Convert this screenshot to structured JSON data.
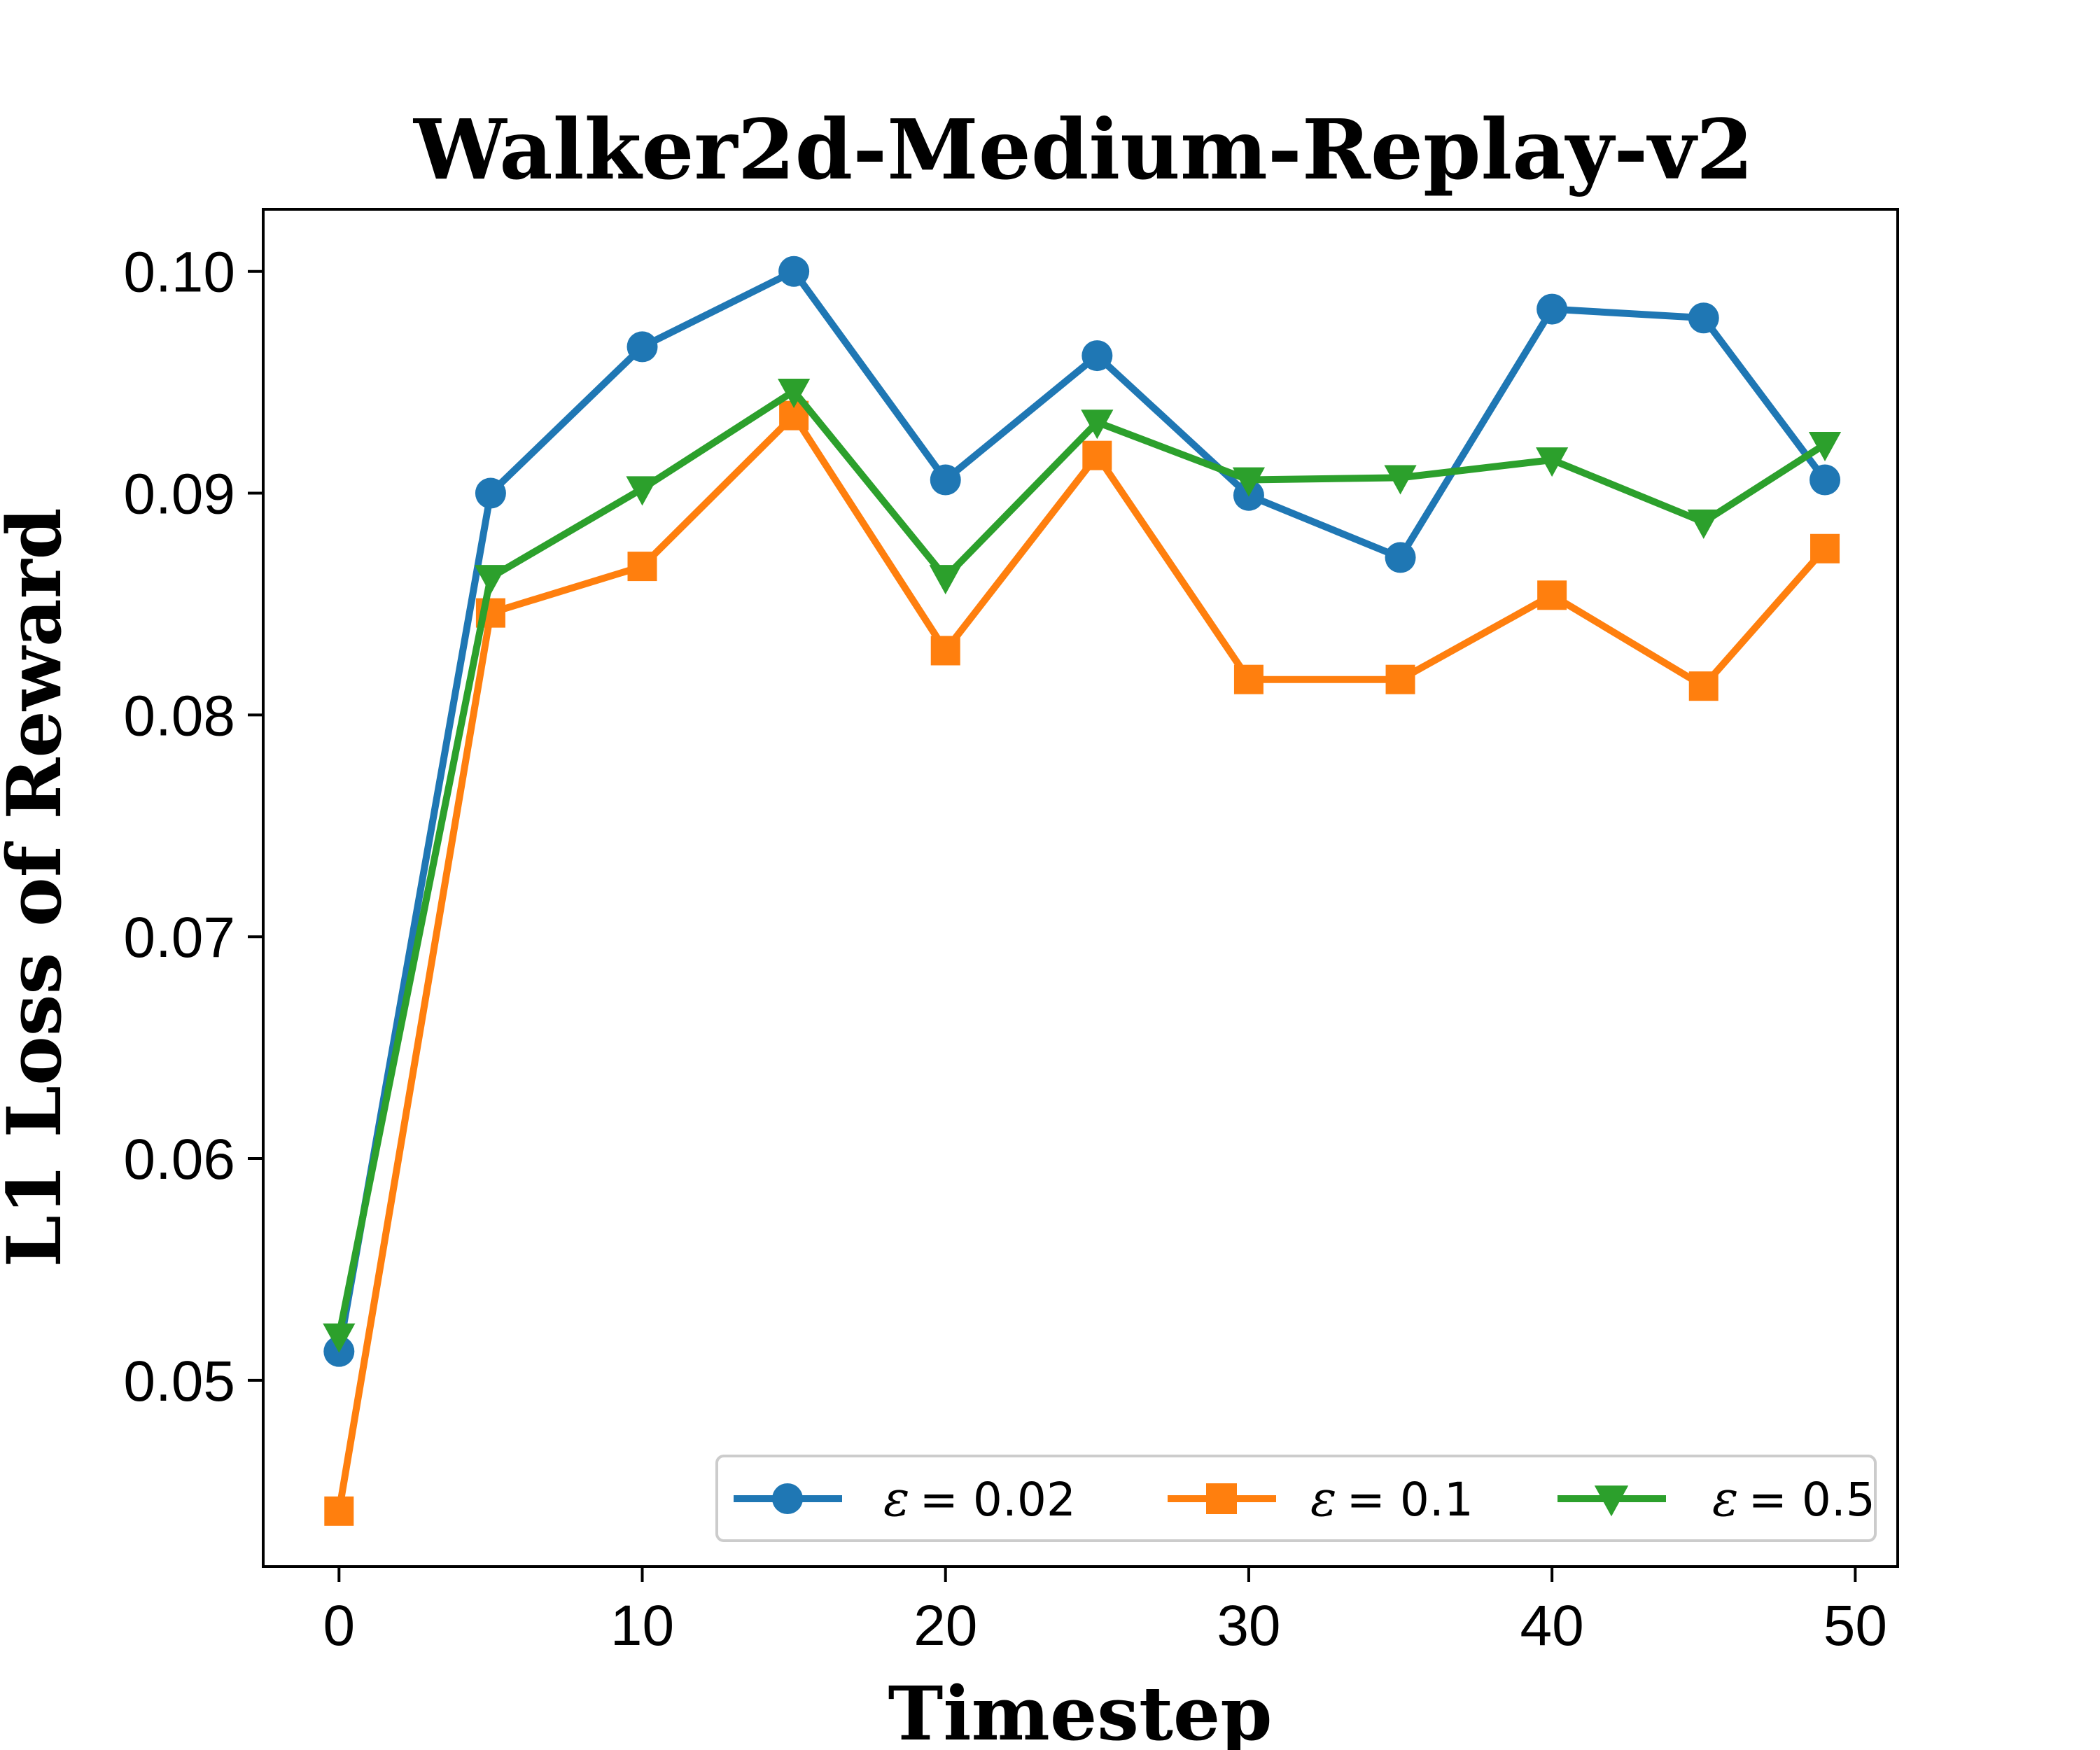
{
  "chart_data": {
    "type": "line",
    "title": "Walker2d-Medium-Replay-v2",
    "xlabel": "Timestep",
    "ylabel": "L1 Loss of Reward",
    "xlim": [
      -2.5,
      51.4
    ],
    "ylim": [
      0.0416,
      0.1028
    ],
    "xticks": [
      0,
      10,
      20,
      30,
      40,
      50
    ],
    "xtick_labels": [
      "0",
      "10",
      "20",
      "30",
      "40",
      "50"
    ],
    "yticks": [
      0.05,
      0.06,
      0.07,
      0.08,
      0.09,
      0.1
    ],
    "ytick_labels": [
      "0.05",
      "0.06",
      "0.07",
      "0.08",
      "0.09",
      "0.10"
    ],
    "x": [
      0,
      5,
      10,
      15,
      20,
      25,
      30,
      35,
      40,
      45,
      49
    ],
    "grid": false,
    "legend_position": "lower-right",
    "series": [
      {
        "name": "ε = 0.02",
        "legend_symbol": "ε",
        "legend_value": "= 0.02",
        "color": "#1f77b4",
        "marker": "circle",
        "values": [
          0.0513,
          0.09,
          0.0966,
          0.1,
          0.0906,
          0.0962,
          0.0899,
          0.0871,
          0.0983,
          0.0979,
          0.0906
        ]
      },
      {
        "name": "ε = 0.1",
        "legend_symbol": "ε",
        "legend_value": "= 0.1",
        "color": "#ff7f0e",
        "marker": "square",
        "values": [
          0.0441,
          0.0846,
          0.0867,
          0.0935,
          0.0829,
          0.0917,
          0.0816,
          0.0816,
          0.0854,
          0.0813,
          0.0875
        ]
      },
      {
        "name": "ε = 0.5",
        "legend_symbol": "ε",
        "legend_value": "= 0.5",
        "color": "#2ca02c",
        "marker": "triangle-down",
        "values": [
          0.052,
          0.0862,
          0.0902,
          0.0946,
          0.0862,
          0.0932,
          0.0906,
          0.0907,
          0.0915,
          0.0887,
          0.0922
        ]
      }
    ]
  }
}
